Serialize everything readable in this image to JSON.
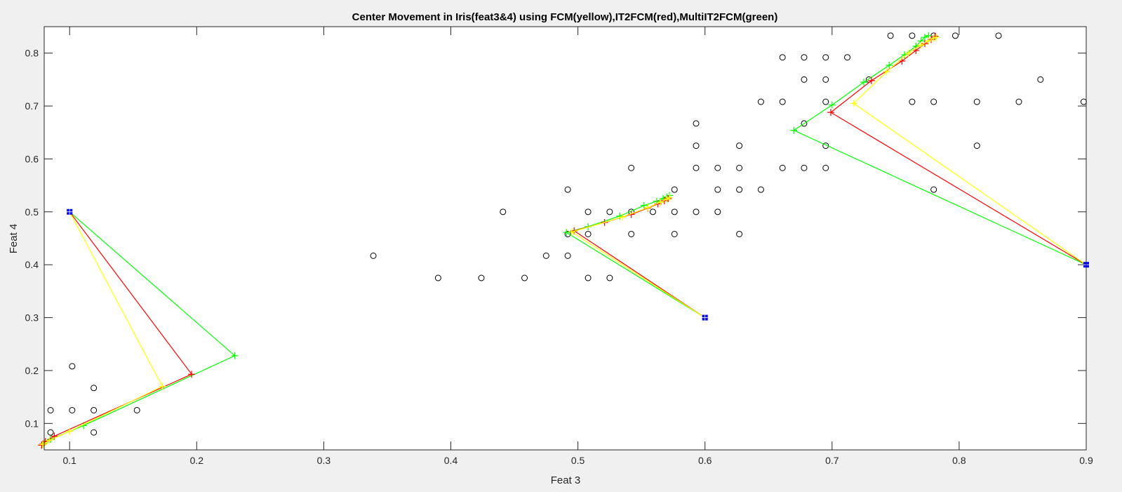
{
  "chart_data": {
    "type": "scatter",
    "title": "Center Movement in Iris(feat3&4) using FCM(yellow),IT2FCM(red),MultiIT2FCM(green)",
    "xlabel": "Feat 3",
    "ylabel": "Feat 4",
    "xlim": [
      0.08,
      0.9
    ],
    "ylim": [
      0.05,
      0.85
    ],
    "xticks": [
      "0.1",
      "0.2",
      "0.3",
      "0.4",
      "0.5",
      "0.6",
      "0.7",
      "0.8",
      "0.9"
    ],
    "yticks": [
      "0.1",
      "0.2",
      "0.3",
      "0.4",
      "0.5",
      "0.6",
      "0.7",
      "0.8"
    ],
    "grid": false,
    "colors": {
      "background": "#f0f0f0",
      "plot_area": "#ffffff",
      "data_points": "#000000",
      "fcm": "#ffff00",
      "it2fcm": "#ff0000",
      "multiit2fcm": "#00ff00",
      "initial_centers": "#0000ff"
    },
    "data_points": [
      [
        0.085,
        0.125
      ],
      [
        0.102,
        0.208
      ],
      [
        0.102,
        0.125
      ],
      [
        0.119,
        0.167
      ],
      [
        0.119,
        0.125
      ],
      [
        0.119,
        0.083
      ],
      [
        0.153,
        0.125
      ],
      [
        0.085,
        0.083
      ],
      [
        0.339,
        0.417
      ],
      [
        0.39,
        0.375
      ],
      [
        0.424,
        0.375
      ],
      [
        0.441,
        0.5
      ],
      [
        0.458,
        0.375
      ],
      [
        0.475,
        0.417
      ],
      [
        0.492,
        0.542
      ],
      [
        0.492,
        0.458
      ],
      [
        0.492,
        0.417
      ],
      [
        0.508,
        0.5
      ],
      [
        0.508,
        0.458
      ],
      [
        0.508,
        0.375
      ],
      [
        0.525,
        0.5
      ],
      [
        0.525,
        0.375
      ],
      [
        0.542,
        0.583
      ],
      [
        0.542,
        0.5
      ],
      [
        0.542,
        0.458
      ],
      [
        0.559,
        0.5
      ],
      [
        0.576,
        0.542
      ],
      [
        0.576,
        0.5
      ],
      [
        0.576,
        0.458
      ],
      [
        0.593,
        0.667
      ],
      [
        0.593,
        0.625
      ],
      [
        0.593,
        0.583
      ],
      [
        0.593,
        0.5
      ],
      [
        0.61,
        0.583
      ],
      [
        0.61,
        0.542
      ],
      [
        0.61,
        0.5
      ],
      [
        0.627,
        0.625
      ],
      [
        0.627,
        0.583
      ],
      [
        0.627,
        0.542
      ],
      [
        0.627,
        0.458
      ],
      [
        0.644,
        0.708
      ],
      [
        0.644,
        0.542
      ],
      [
        0.661,
        0.792
      ],
      [
        0.661,
        0.708
      ],
      [
        0.661,
        0.583
      ],
      [
        0.678,
        0.792
      ],
      [
        0.678,
        0.75
      ],
      [
        0.678,
        0.667
      ],
      [
        0.678,
        0.583
      ],
      [
        0.695,
        0.792
      ],
      [
        0.695,
        0.75
      ],
      [
        0.695,
        0.708
      ],
      [
        0.695,
        0.625
      ],
      [
        0.695,
        0.583
      ],
      [
        0.712,
        0.792
      ],
      [
        0.729,
        0.75
      ],
      [
        0.746,
        0.833
      ],
      [
        0.763,
        0.833
      ],
      [
        0.763,
        0.708
      ],
      [
        0.78,
        0.833
      ],
      [
        0.78,
        0.708
      ],
      [
        0.78,
        0.542
      ],
      [
        0.797,
        0.833
      ],
      [
        0.814,
        0.708
      ],
      [
        0.814,
        0.625
      ],
      [
        0.831,
        0.833
      ],
      [
        0.847,
        0.708
      ],
      [
        0.864,
        0.75
      ],
      [
        0.898,
        0.708
      ]
    ],
    "initial_centers": [
      [
        0.1,
        0.5
      ],
      [
        0.6,
        0.3
      ],
      [
        0.9,
        0.4
      ]
    ],
    "series": [
      {
        "name": "FCM(yellow)",
        "color": "#ffff00",
        "paths": [
          [
            [
              0.1,
              0.5
            ],
            [
              0.173,
              0.17
            ],
            [
              0.1,
              0.085
            ],
            [
              0.084,
              0.068
            ],
            [
              0.08,
              0.062
            ],
            [
              0.079,
              0.06
            ]
          ],
          [
            [
              0.6,
              0.3
            ],
            [
              0.495,
              0.462
            ],
            [
              0.535,
              0.49
            ],
            [
              0.555,
              0.508
            ],
            [
              0.565,
              0.518
            ],
            [
              0.57,
              0.524
            ],
            [
              0.572,
              0.527
            ]
          ],
          [
            [
              0.9,
              0.4
            ],
            [
              0.717,
              0.705
            ],
            [
              0.743,
              0.765
            ],
            [
              0.76,
              0.8
            ],
            [
              0.77,
              0.815
            ],
            [
              0.776,
              0.823
            ],
            [
              0.78,
              0.828
            ],
            [
              0.782,
              0.83
            ]
          ]
        ]
      },
      {
        "name": "IT2FCM(red)",
        "color": "#ff0000",
        "paths": [
          [
            [
              0.1,
              0.5
            ],
            [
              0.196,
              0.193
            ],
            [
              0.088,
              0.076
            ],
            [
              0.081,
              0.066
            ],
            [
              0.079,
              0.061
            ],
            [
              0.078,
              0.059
            ]
          ],
          [
            [
              0.6,
              0.3
            ],
            [
              0.497,
              0.464
            ],
            [
              0.521,
              0.48
            ],
            [
              0.542,
              0.495
            ],
            [
              0.555,
              0.507
            ],
            [
              0.563,
              0.515
            ],
            [
              0.568,
              0.521
            ],
            [
              0.571,
              0.525
            ]
          ],
          [
            [
              0.9,
              0.4
            ],
            [
              0.699,
              0.688
            ],
            [
              0.731,
              0.748
            ],
            [
              0.755,
              0.785
            ],
            [
              0.766,
              0.805
            ],
            [
              0.773,
              0.818
            ],
            [
              0.778,
              0.826
            ],
            [
              0.781,
              0.832
            ]
          ]
        ]
      },
      {
        "name": "MultiIT2FCM(green)",
        "color": "#00ff00",
        "paths": [
          [
            [
              0.1,
              0.5
            ],
            [
              0.23,
              0.228
            ],
            [
              0.111,
              0.096
            ],
            [
              0.085,
              0.07
            ],
            [
              0.08,
              0.063
            ],
            [
              0.078,
              0.059
            ]
          ],
          [
            [
              0.6,
              0.3
            ],
            [
              0.491,
              0.461
            ],
            [
              0.508,
              0.472
            ],
            [
              0.533,
              0.492
            ],
            [
              0.552,
              0.512
            ],
            [
              0.562,
              0.52
            ],
            [
              0.567,
              0.525
            ],
            [
              0.57,
              0.528
            ],
            [
              0.572,
              0.531
            ]
          ],
          [
            [
              0.9,
              0.4
            ],
            [
              0.67,
              0.654
            ],
            [
              0.7,
              0.702
            ],
            [
              0.725,
              0.745
            ],
            [
              0.745,
              0.777
            ],
            [
              0.757,
              0.797
            ],
            [
              0.766,
              0.813
            ],
            [
              0.77,
              0.823
            ],
            [
              0.773,
              0.83
            ],
            [
              0.776,
              0.833
            ]
          ]
        ]
      }
    ]
  }
}
